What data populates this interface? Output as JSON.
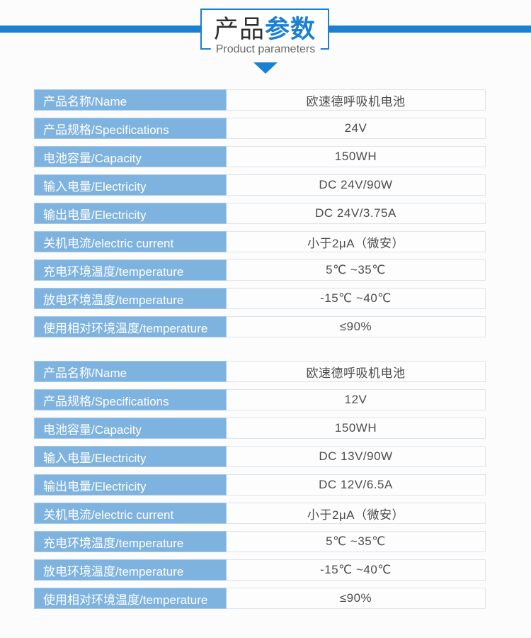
{
  "header": {
    "title_zh_dark": "产品",
    "title_zh_blue": "参数",
    "subtitle": "Product parameters"
  },
  "colors": {
    "accent_blue": "#1b7fd2",
    "label_cell_blue": "#7fb3df",
    "label_text": "#ffffff",
    "value_text": "#4c4c4c",
    "value_cell_border": "#dde4eb"
  },
  "icons": {
    "down_triangle": "triangle-down-icon"
  },
  "tables": [
    {
      "rows": [
        {
          "label": "产品名称/Name",
          "value": "欧速德呼吸机电池"
        },
        {
          "label": "产品规格/Specifications",
          "value": "24V"
        },
        {
          "label": "电池容量/Capacity",
          "value": "150WH"
        },
        {
          "label": "输入电量/Electricity",
          "value": "DC 24V/90W"
        },
        {
          "label": "输出电量/Electricity",
          "value": "DC 24V/3.75A"
        },
        {
          "label": "关机电流/electric current",
          "value": "小于2μA（微安）"
        },
        {
          "label": "充电环境温度/temperature",
          "value": "5℃ ~35℃"
        },
        {
          "label": "放电环境温度/temperature",
          "value": "-15℃ ~40℃"
        },
        {
          "label": "使用相对环境温度/temperature",
          "value": "≤90%"
        }
      ]
    },
    {
      "rows": [
        {
          "label": "产品名称/Name",
          "value": "欧速德呼吸机电池"
        },
        {
          "label": "产品规格/Specifications",
          "value": "12V"
        },
        {
          "label": "电池容量/Capacity",
          "value": "150WH"
        },
        {
          "label": "输入电量/Electricity",
          "value": "DC 13V/90W"
        },
        {
          "label": "输出电量/Electricity",
          "value": "DC 12V/6.5A"
        },
        {
          "label": "关机电流/electric current",
          "value": "小于2μA（微安）"
        },
        {
          "label": "充电环境温度/temperature",
          "value": "5℃ ~35℃"
        },
        {
          "label": "放电环境温度/temperature",
          "value": "-15℃ ~40℃"
        },
        {
          "label": "使用相对环境温度/temperature",
          "value": "≤90%"
        }
      ]
    }
  ]
}
